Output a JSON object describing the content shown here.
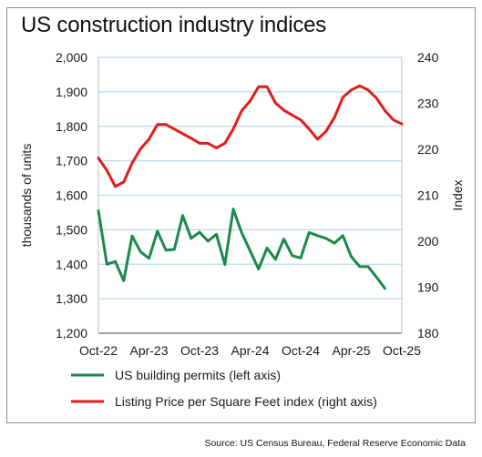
{
  "title": "US construction industry indices",
  "source": "Source: US Census Bureau, Federal Reserve Economic Data",
  "chart_data": {
    "type": "line",
    "title": "US construction industry indices",
    "x_tick_labels": [
      "Oct-22",
      "Apr-23",
      "Oct-23",
      "Apr-24",
      "Oct-24",
      "Apr-25",
      "Oct-25"
    ],
    "x": [
      "2022-10",
      "2022-11",
      "2022-12",
      "2023-01",
      "2023-02",
      "2023-03",
      "2023-04",
      "2023-05",
      "2023-06",
      "2023-07",
      "2023-08",
      "2023-09",
      "2023-10",
      "2023-11",
      "2023-12",
      "2024-01",
      "2024-02",
      "2024-03",
      "2024-04",
      "2024-05",
      "2024-06",
      "2024-07",
      "2024-08",
      "2024-09",
      "2024-10",
      "2024-11",
      "2024-12",
      "2025-01",
      "2025-02",
      "2025-03",
      "2025-04",
      "2025-05",
      "2025-06",
      "2025-07",
      "2025-08",
      "2025-09",
      "2025-10"
    ],
    "left_axis": {
      "label": "thousands of units",
      "ylim": [
        1200,
        2000
      ],
      "ticks": [
        2000,
        1900,
        1800,
        1700,
        1600,
        1500,
        1400,
        1300,
        1200
      ],
      "tick_labels": [
        "2,000",
        "1,900",
        "1,800",
        "1,700",
        "1,600",
        "1,500",
        "1,400",
        "1,300",
        "1,200"
      ]
    },
    "right_axis": {
      "label": "Index",
      "ylim": [
        180,
        240
      ],
      "ticks": [
        240,
        230,
        220,
        210,
        200,
        190,
        180
      ],
      "tick_labels": [
        "240",
        "230",
        "220",
        "210",
        "200",
        "190",
        "180"
      ]
    },
    "grid": true,
    "legend_position": "bottom",
    "series": [
      {
        "name": "US building permits (left axis)",
        "axis": "left",
        "color": "#1a8a4a",
        "values": [
          1555,
          1400,
          1408,
          1352,
          1482,
          1436,
          1417,
          1496,
          1441,
          1443,
          1541,
          1475,
          1493,
          1467,
          1487,
          1399,
          1560,
          1491,
          1439,
          1386,
          1447,
          1414,
          1473,
          1425,
          1418,
          1492,
          1483,
          1475,
          1461,
          1483,
          1422,
          1393,
          1393,
          1362,
          1330,
          null,
          null
        ]
      },
      {
        "name": "Listing Price per Square Feet index (right axis)",
        "axis": "right",
        "color": "#e31b1b",
        "values": [
          218.1,
          215.4,
          211.9,
          212.9,
          217.0,
          220.1,
          222.2,
          225.4,
          225.4,
          224.4,
          223.4,
          222.4,
          221.3,
          221.3,
          220.3,
          221.3,
          224.4,
          228.4,
          230.5,
          233.6,
          233.6,
          230.1,
          228.5,
          227.4,
          226.4,
          224.4,
          222.2,
          223.9,
          226.9,
          231.3,
          232.9,
          233.8,
          232.9,
          231.1,
          228.4,
          226.4,
          225.5
        ]
      }
    ]
  }
}
